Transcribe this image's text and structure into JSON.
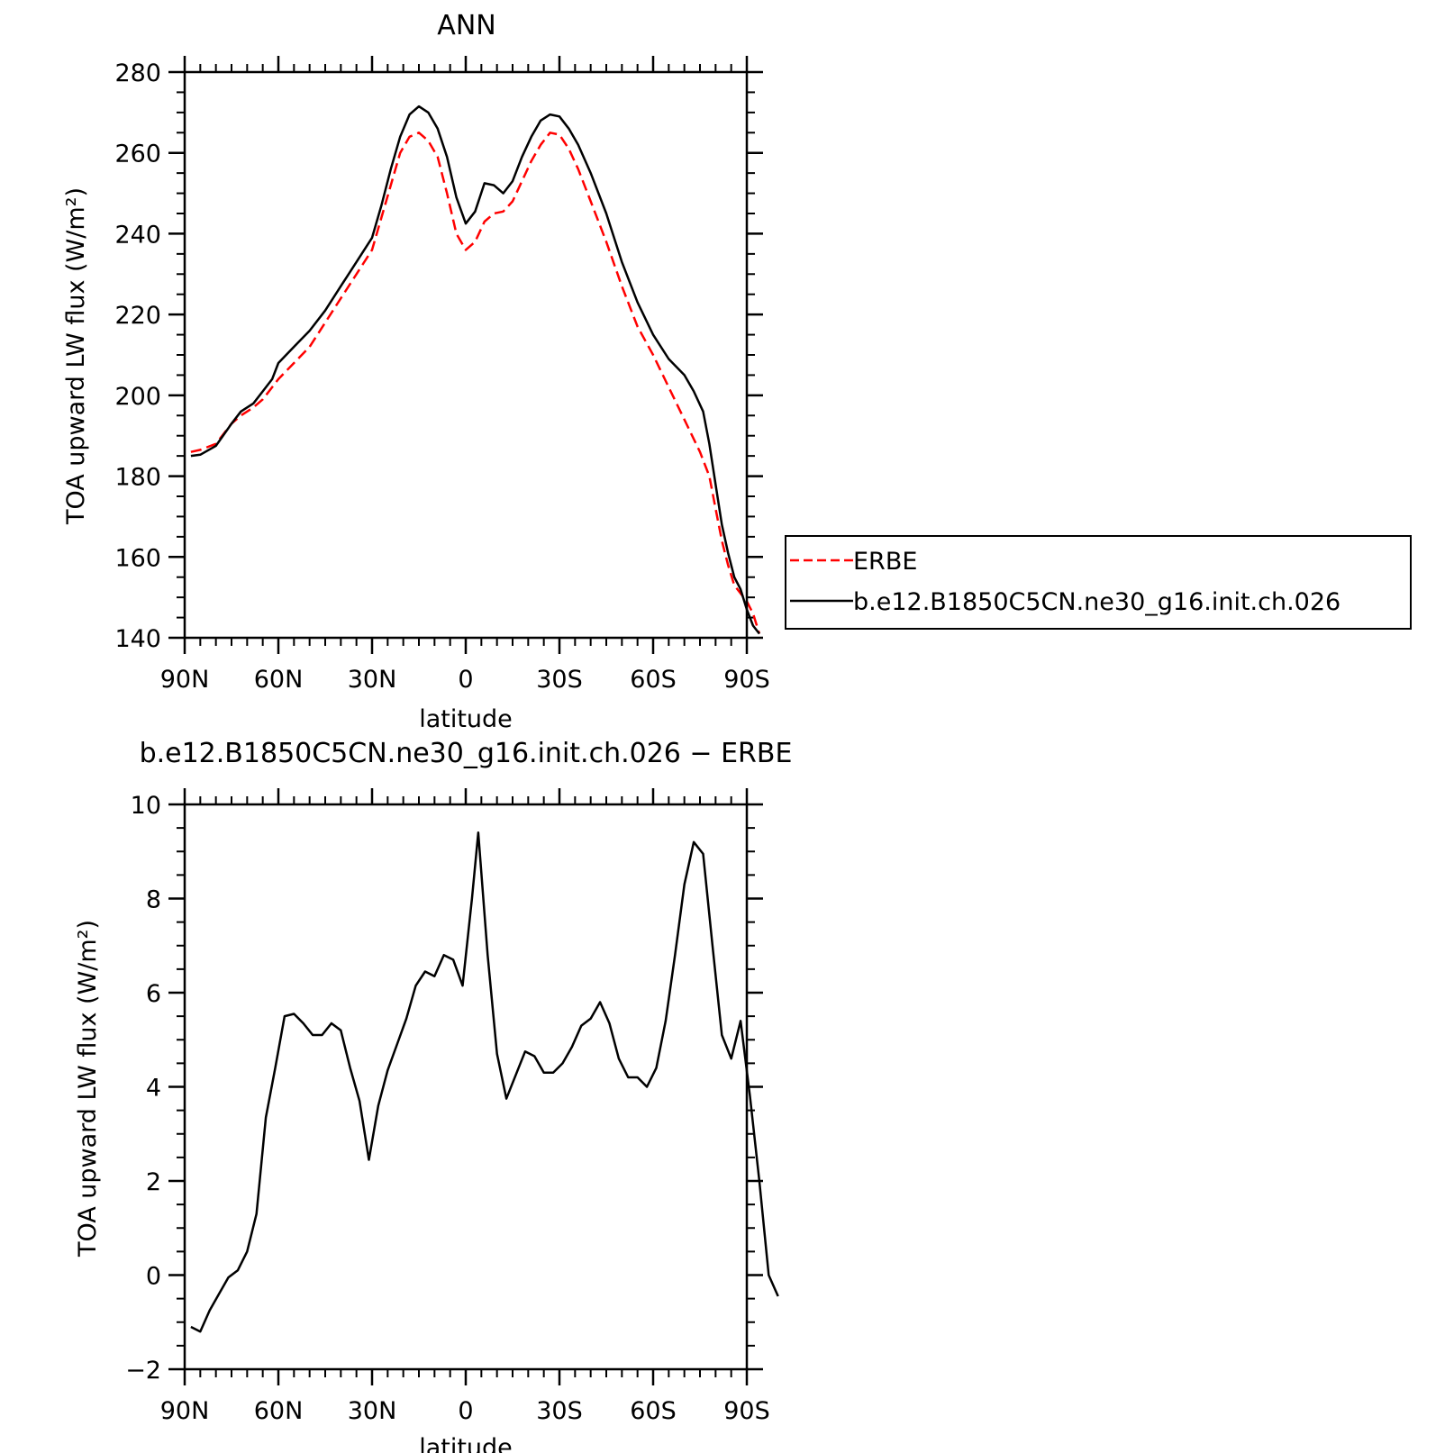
{
  "chart_data": [
    {
      "type": "line",
      "title": "ANN",
      "xlabel": "latitude",
      "ylabel": "TOA upward LW flux (W/m²)",
      "xlim": [
        90,
        -90
      ],
      "ylim": [
        140,
        280
      ],
      "xticks": [
        {
          "value": 90,
          "label": "90N"
        },
        {
          "value": 60,
          "label": "60N"
        },
        {
          "value": 30,
          "label": "30N"
        },
        {
          "value": 0,
          "label": "0"
        },
        {
          "value": -30,
          "label": "30S"
        },
        {
          "value": -60,
          "label": "60S"
        },
        {
          "value": -90,
          "label": "90S"
        }
      ],
      "yticks": [
        140,
        160,
        180,
        200,
        220,
        240,
        260,
        280
      ],
      "legend": {
        "position": "right"
      },
      "grid": false,
      "series": [
        {
          "name": "ERBE",
          "style": "dashed",
          "color": "#ff0000",
          "points": [
            [
              88,
              186
            ],
            [
              85,
              186.5
            ],
            [
              80,
              188
            ],
            [
              75,
              193
            ],
            [
              72,
              195
            ],
            [
              68,
              197
            ],
            [
              65,
              199
            ],
            [
              62,
              202
            ],
            [
              60,
              204
            ],
            [
              55,
              208
            ],
            [
              50,
              212
            ],
            [
              45,
              218
            ],
            [
              40,
              224
            ],
            [
              35,
              230
            ],
            [
              30,
              236
            ],
            [
              27,
              244
            ],
            [
              24,
              252
            ],
            [
              21,
              260
            ],
            [
              18,
              264
            ],
            [
              15,
              265
            ],
            [
              12,
              263
            ],
            [
              9,
              259
            ],
            [
              6,
              250
            ],
            [
              3,
              240
            ],
            [
              0,
              236
            ],
            [
              -3,
              238
            ],
            [
              -6,
              243
            ],
            [
              -9,
              245
            ],
            [
              -12,
              245.5
            ],
            [
              -15,
              248
            ],
            [
              -18,
              253
            ],
            [
              -21,
              258
            ],
            [
              -24,
              262
            ],
            [
              -27,
              265
            ],
            [
              -30,
              264.5
            ],
            [
              -33,
              261
            ],
            [
              -36,
              256
            ],
            [
              -40,
              248
            ],
            [
              -45,
              238
            ],
            [
              -50,
              227
            ],
            [
              -55,
              217
            ],
            [
              -60,
              210
            ],
            [
              -65,
              202
            ],
            [
              -70,
              194
            ],
            [
              -75,
              186
            ],
            [
              -78,
              180
            ],
            [
              -80,
              172
            ],
            [
              -82,
              164
            ],
            [
              -84,
              158
            ],
            [
              -86,
              153
            ],
            [
              -88,
              151
            ],
            [
              -90,
              149
            ],
            [
              -92,
              146
            ],
            [
              -94,
              141
            ]
          ]
        },
        {
          "name": "b.e12.B1850C5CN.ne30_g16.init.ch.026",
          "style": "solid",
          "color": "#000000",
          "points": [
            [
              88,
              185
            ],
            [
              85,
              185.3
            ],
            [
              80,
              187.5
            ],
            [
              75,
              193
            ],
            [
              72,
              196
            ],
            [
              68,
              198
            ],
            [
              65,
              201
            ],
            [
              62,
              204
            ],
            [
              60,
              208
            ],
            [
              55,
              212
            ],
            [
              50,
              216
            ],
            [
              45,
              221
            ],
            [
              40,
              227
            ],
            [
              35,
              233
            ],
            [
              30,
              239
            ],
            [
              27,
              247
            ],
            [
              24,
              256
            ],
            [
              21,
              264
            ],
            [
              18,
              269.5
            ],
            [
              15,
              271.5
            ],
            [
              12,
              270
            ],
            [
              9,
              266
            ],
            [
              6,
              259
            ],
            [
              3,
              249
            ],
            [
              0,
              242.5
            ],
            [
              -3,
              245.5
            ],
            [
              -6,
              252.5
            ],
            [
              -9,
              252
            ],
            [
              -12,
              250
            ],
            [
              -15,
              253
            ],
            [
              -18,
              259
            ],
            [
              -21,
              264
            ],
            [
              -24,
              268
            ],
            [
              -27,
              269.5
            ],
            [
              -30,
              269
            ],
            [
              -33,
              266
            ],
            [
              -36,
              262
            ],
            [
              -40,
              255
            ],
            [
              -45,
              245
            ],
            [
              -50,
              233
            ],
            [
              -55,
              223
            ],
            [
              -60,
              215
            ],
            [
              -65,
              209
            ],
            [
              -70,
              205
            ],
            [
              -73,
              201
            ],
            [
              -76,
              196
            ],
            [
              -78,
              188
            ],
            [
              -80,
              178
            ],
            [
              -82,
              168
            ],
            [
              -84,
              161
            ],
            [
              -86,
              155
            ],
            [
              -88,
              152
            ],
            [
              -90,
              147
            ],
            [
              -92,
              143
            ],
            [
              -94,
              141
            ]
          ]
        }
      ]
    },
    {
      "type": "line",
      "title": "b.e12.B1850C5CN.ne30_g16.init.ch.026 − ERBE",
      "xlabel": "latitude",
      "ylabel": "TOA upward LW flux (W/m²)",
      "xlim": [
        90,
        -90
      ],
      "ylim": [
        -2,
        10
      ],
      "xticks": [
        {
          "value": 90,
          "label": "90N"
        },
        {
          "value": 60,
          "label": "60N"
        },
        {
          "value": 30,
          "label": "30N"
        },
        {
          "value": 0,
          "label": "0"
        },
        {
          "value": -30,
          "label": "30S"
        },
        {
          "value": -60,
          "label": "60S"
        },
        {
          "value": -90,
          "label": "90S"
        }
      ],
      "yticks": [
        -2,
        0,
        2,
        4,
        6,
        8,
        10
      ],
      "grid": false,
      "series": [
        {
          "style": "solid",
          "color": "#000000",
          "points": [
            [
              88,
              -1.1
            ],
            [
              85,
              -1.2
            ],
            [
              82,
              -0.75
            ],
            [
              79,
              -0.4
            ],
            [
              76,
              -0.05
            ],
            [
              73,
              0.1
            ],
            [
              70,
              0.5
            ],
            [
              67,
              1.3
            ],
            [
              64,
              3.35
            ],
            [
              61,
              4.4
            ],
            [
              58,
              5.5
            ],
            [
              55,
              5.55
            ],
            [
              52,
              5.35
            ],
            [
              49,
              5.1
            ],
            [
              46,
              5.1
            ],
            [
              43,
              5.35
            ],
            [
              40,
              5.2
            ],
            [
              37,
              4.4
            ],
            [
              34,
              3.7
            ],
            [
              31,
              2.45
            ],
            [
              28,
              3.6
            ],
            [
              25,
              4.35
            ],
            [
              22,
              4.9
            ],
            [
              19,
              5.45
            ],
            [
              16,
              6.15
            ],
            [
              13,
              6.45
            ],
            [
              10,
              6.35
            ],
            [
              7,
              6.8
            ],
            [
              4,
              6.7
            ],
            [
              1,
              6.15
            ],
            [
              -2,
              8.0
            ],
            [
              -4,
              9.4
            ],
            [
              -7,
              6.8
            ],
            [
              -10,
              4.7
            ],
            [
              -13,
              3.75
            ],
            [
              -16,
              4.25
            ],
            [
              -19,
              4.75
            ],
            [
              -22,
              4.65
            ],
            [
              -25,
              4.3
            ],
            [
              -28,
              4.3
            ],
            [
              -31,
              4.5
            ],
            [
              -34,
              4.85
            ],
            [
              -37,
              5.3
            ],
            [
              -40,
              5.45
            ],
            [
              -43,
              5.8
            ],
            [
              -46,
              5.35
            ],
            [
              -49,
              4.6
            ],
            [
              -52,
              4.2
            ],
            [
              -55,
              4.2
            ],
            [
              -58,
              4.0
            ],
            [
              -61,
              4.4
            ],
            [
              -64,
              5.4
            ],
            [
              -67,
              6.8
            ],
            [
              -70,
              8.3
            ],
            [
              -73,
              9.2
            ],
            [
              -76,
              8.95
            ],
            [
              -79,
              7.0
            ],
            [
              -82,
              5.1
            ],
            [
              -85,
              4.6
            ],
            [
              -88,
              5.4
            ],
            [
              -91,
              3.8
            ],
            [
              -94,
              2.0
            ],
            [
              -97,
              0.0
            ],
            [
              -100,
              -0.45
            ]
          ]
        }
      ]
    }
  ]
}
